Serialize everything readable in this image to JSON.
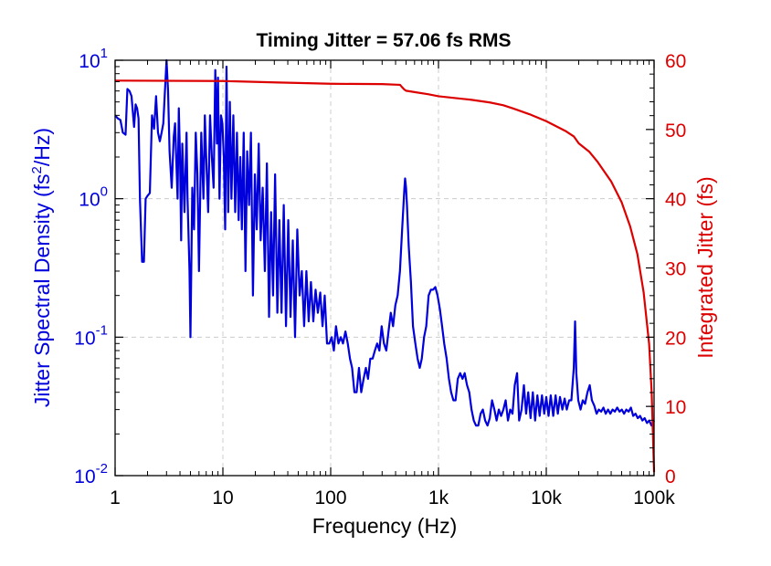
{
  "chart_data": {
    "type": "line",
    "title": "Timing Jitter = 57.06 fs RMS",
    "xlabel": "Frequency (Hz)",
    "ylabel_left": {
      "text": "Jitter Spectral Density (fs",
      "sup": "2",
      "tail": "/Hz)"
    },
    "ylabel_right": "Integrated Jitter (fs)",
    "x_scale": "log",
    "xlim": [
      1,
      100000
    ],
    "x_ticks": [
      {
        "value": 1,
        "label": "1"
      },
      {
        "value": 10,
        "label": "10"
      },
      {
        "value": 100,
        "label": "100"
      },
      {
        "value": 1000,
        "label": "1k"
      },
      {
        "value": 10000,
        "label": "10k"
      },
      {
        "value": 100000,
        "label": "100k"
      }
    ],
    "y_left_scale": "log",
    "ylim_left": [
      0.01,
      10
    ],
    "y_left_ticks": [
      {
        "value": 10,
        "base": "10",
        "exp": "1"
      },
      {
        "value": 1,
        "base": "10",
        "exp": "0"
      },
      {
        "value": 0.1,
        "base": "10",
        "exp": "-1"
      },
      {
        "value": 0.01,
        "base": "10",
        "exp": "-2"
      }
    ],
    "ylim_right": [
      0,
      60
    ],
    "y_right_ticks": [
      "0",
      "10",
      "20",
      "30",
      "40",
      "50",
      "60"
    ],
    "grid": true,
    "colors": {
      "spectral_density": "#0000dd",
      "integrated_jitter": "#dd0000",
      "grid": "#cccccc",
      "axes": "#000000"
    },
    "series": [
      {
        "axis": "left",
        "color": "#0000dd",
        "points": [
          [
            1.0,
            4.0
          ],
          [
            1.06,
            3.8
          ],
          [
            1.12,
            3.7
          ],
          [
            1.18,
            3.0
          ],
          [
            1.25,
            2.9
          ],
          [
            1.3,
            6.2
          ],
          [
            1.36,
            6.0
          ],
          [
            1.42,
            5.5
          ],
          [
            1.5,
            3.3
          ],
          [
            1.55,
            4.8
          ],
          [
            1.6,
            4.5
          ],
          [
            1.65,
            3.8
          ],
          [
            1.7,
            1.0
          ],
          [
            1.78,
            0.35
          ],
          [
            1.85,
            0.35
          ],
          [
            1.92,
            1.0
          ],
          [
            2.0,
            1.05
          ],
          [
            2.1,
            1.1
          ],
          [
            2.2,
            4.0
          ],
          [
            2.3,
            3.2
          ],
          [
            2.4,
            5.5
          ],
          [
            2.5,
            3.0
          ],
          [
            2.6,
            2.6
          ],
          [
            2.7,
            3.0
          ],
          [
            2.8,
            3.5
          ],
          [
            2.9,
            6.0
          ],
          [
            3.0,
            10.0
          ],
          [
            3.1,
            6.0
          ],
          [
            3.2,
            2.2
          ],
          [
            3.35,
            1.2
          ],
          [
            3.5,
            2.8
          ],
          [
            3.6,
            3.5
          ],
          [
            3.8,
            1.0
          ],
          [
            3.9,
            4.5
          ],
          [
            4.0,
            2.0
          ],
          [
            4.1,
            0.5
          ],
          [
            4.2,
            2.5
          ],
          [
            4.4,
            0.8
          ],
          [
            4.6,
            3.0
          ],
          [
            4.7,
            1.0
          ],
          [
            4.9,
            0.3
          ],
          [
            5.0,
            0.1
          ],
          [
            5.2,
            1.2
          ],
          [
            5.4,
            0.6
          ],
          [
            5.6,
            3.0
          ],
          [
            5.8,
            1.5
          ],
          [
            6.0,
            0.3
          ],
          [
            6.3,
            3.0
          ],
          [
            6.6,
            1.0
          ],
          [
            6.8,
            4.0
          ],
          [
            7.0,
            2.0
          ],
          [
            7.3,
            0.8
          ],
          [
            7.6,
            4.0
          ],
          [
            7.9,
            2.0
          ],
          [
            8.2,
            1.2
          ],
          [
            8.5,
            8.5
          ],
          [
            8.8,
            2.5
          ],
          [
            9.0,
            7.5
          ],
          [
            9.3,
            1.0
          ],
          [
            9.6,
            4.0
          ],
          [
            9.9,
            3.5
          ],
          [
            10.2,
            2.0
          ],
          [
            10.5,
            0.6
          ],
          [
            10.8,
            9.0
          ],
          [
            11.2,
            0.8
          ],
          [
            11.6,
            5.0
          ],
          [
            12.0,
            1.0
          ],
          [
            12.5,
            4.0
          ],
          [
            13.0,
            0.8
          ],
          [
            13.5,
            3.0
          ],
          [
            14.0,
            0.7
          ],
          [
            14.5,
            2.0
          ],
          [
            15.0,
            0.6
          ],
          [
            15.6,
            3.0
          ],
          [
            16.2,
            0.3
          ],
          [
            16.8,
            2.2
          ],
          [
            17.5,
            0.9
          ],
          [
            18.2,
            3.0
          ],
          [
            19.0,
            0.2
          ],
          [
            19.8,
            1.5
          ],
          [
            20.6,
            0.6
          ],
          [
            21.5,
            2.5
          ],
          [
            22.4,
            0.5
          ],
          [
            23.4,
            1.2
          ],
          [
            24.5,
            0.3
          ],
          [
            25.6,
            1.8
          ],
          [
            26.8,
            0.14
          ],
          [
            28.0,
            0.8
          ],
          [
            29.2,
            0.2
          ],
          [
            30.5,
            1.5
          ],
          [
            32.0,
            0.15
          ],
          [
            33.4,
            0.7
          ],
          [
            35.0,
            0.15
          ],
          [
            36.7,
            0.9
          ],
          [
            38.5,
            0.12
          ],
          [
            40.4,
            0.7
          ],
          [
            42.4,
            0.14
          ],
          [
            44.5,
            0.5
          ],
          [
            46.7,
            0.1
          ],
          [
            49.0,
            0.6
          ],
          [
            51.5,
            0.2
          ],
          [
            54.0,
            0.3
          ],
          [
            56.7,
            0.12
          ],
          [
            59.5,
            0.3
          ],
          [
            62.5,
            0.13
          ],
          [
            65.6,
            0.25
          ],
          [
            69.0,
            0.13
          ],
          [
            72.4,
            0.22
          ],
          [
            76.0,
            0.15
          ],
          [
            80.0,
            0.21
          ],
          [
            84.0,
            0.12
          ],
          [
            88.0,
            0.2
          ],
          [
            92.5,
            0.09
          ],
          [
            97.0,
            0.09
          ],
          [
            102.0,
            0.1
          ],
          [
            107.0,
            0.08
          ],
          [
            112.0,
            0.12
          ],
          [
            118.0,
            0.09
          ],
          [
            124.0,
            0.1
          ],
          [
            130.0,
            0.09
          ],
          [
            137.0,
            0.11
          ],
          [
            144.0,
            0.09
          ],
          [
            151.0,
            0.07
          ],
          [
            158.0,
            0.06
          ],
          [
            166.0,
            0.04
          ],
          [
            174.0,
            0.04
          ],
          [
            183.0,
            0.06
          ],
          [
            192.0,
            0.04
          ],
          [
            202.0,
            0.05
          ],
          [
            212.0,
            0.06
          ],
          [
            222.0,
            0.05
          ],
          [
            233.0,
            0.07
          ],
          [
            245.0,
            0.07
          ],
          [
            257.0,
            0.08
          ],
          [
            270.0,
            0.09
          ],
          [
            283.0,
            0.08
          ],
          [
            297.0,
            0.12
          ],
          [
            312.0,
            0.09
          ],
          [
            328.0,
            0.08
          ],
          [
            344.0,
            0.11
          ],
          [
            361.0,
            0.15
          ],
          [
            379.0,
            0.12
          ],
          [
            398.0,
            0.17
          ],
          [
            418.0,
            0.2
          ],
          [
            439.0,
            0.3
          ],
          [
            460.0,
            0.6
          ],
          [
            483.0,
            1.2
          ],
          [
            490.0,
            1.4
          ],
          [
            500.0,
            1.2
          ],
          [
            510.0,
            0.9
          ],
          [
            530.0,
            0.45
          ],
          [
            555.0,
            0.25
          ],
          [
            580.0,
            0.12
          ],
          [
            610.0,
            0.09
          ],
          [
            640.0,
            0.07
          ],
          [
            670.0,
            0.06
          ],
          [
            700.0,
            0.07
          ],
          [
            735.0,
            0.1
          ],
          [
            770.0,
            0.12
          ],
          [
            810.0,
            0.2
          ],
          [
            850.0,
            0.22
          ],
          [
            890.0,
            0.22
          ],
          [
            935.0,
            0.23
          ],
          [
            980.0,
            0.2
          ],
          [
            1030.0,
            0.16
          ],
          [
            1080.0,
            0.12
          ],
          [
            1130.0,
            0.09
          ],
          [
            1190.0,
            0.07
          ],
          [
            1250.0,
            0.05
          ],
          [
            1310.0,
            0.04
          ],
          [
            1375.0,
            0.035
          ],
          [
            1440.0,
            0.035
          ],
          [
            1510.0,
            0.05
          ],
          [
            1590.0,
            0.055
          ],
          [
            1670.0,
            0.05
          ],
          [
            1750.0,
            0.055
          ],
          [
            1840.0,
            0.045
          ],
          [
            1930.0,
            0.04
          ],
          [
            2025.0,
            0.03
          ],
          [
            2125.0,
            0.025
          ],
          [
            2230.0,
            0.023
          ],
          [
            2340.0,
            0.023
          ],
          [
            2460.0,
            0.028
          ],
          [
            2580.0,
            0.03
          ],
          [
            2710.0,
            0.025
          ],
          [
            2850.0,
            0.023
          ],
          [
            2990.0,
            0.026
          ],
          [
            3140.0,
            0.035
          ],
          [
            3300.0,
            0.03
          ],
          [
            3460.0,
            0.025
          ],
          [
            3630.0,
            0.03
          ],
          [
            3810.0,
            0.027
          ],
          [
            4000.0,
            0.03
          ],
          [
            4200.0,
            0.035
          ],
          [
            4410.0,
            0.025
          ],
          [
            4630.0,
            0.03
          ],
          [
            4860.0,
            0.028
          ],
          [
            5100.0,
            0.045
          ],
          [
            5360.0,
            0.055
          ],
          [
            5600.0,
            0.025
          ],
          [
            5900.0,
            0.03
          ],
          [
            6200.0,
            0.045
          ],
          [
            6500.0,
            0.028
          ],
          [
            6800.0,
            0.04
          ],
          [
            7150.0,
            0.026
          ],
          [
            7500.0,
            0.04
          ],
          [
            7880.0,
            0.025
          ],
          [
            8270.0,
            0.038
          ],
          [
            8680.0,
            0.027
          ],
          [
            9120.0,
            0.038
          ],
          [
            9570.0,
            0.028
          ],
          [
            10000.0,
            0.037
          ],
          [
            10500.0,
            0.027
          ],
          [
            11000.0,
            0.038
          ],
          [
            11600.0,
            0.027
          ],
          [
            12200.0,
            0.038
          ],
          [
            12800.0,
            0.028
          ],
          [
            13400.0,
            0.037
          ],
          [
            14100.0,
            0.03
          ],
          [
            14800.0,
            0.036
          ],
          [
            15500.0,
            0.03
          ],
          [
            16300.0,
            0.035
          ],
          [
            17100.0,
            0.035
          ],
          [
            18000.0,
            0.06
          ],
          [
            18500.0,
            0.13
          ],
          [
            19000.0,
            0.055
          ],
          [
            19800.0,
            0.035
          ],
          [
            20800.0,
            0.03
          ],
          [
            21800.0,
            0.035
          ],
          [
            22900.0,
            0.033
          ],
          [
            24100.0,
            0.04
          ],
          [
            25300.0,
            0.045
          ],
          [
            26500.0,
            0.035
          ],
          [
            27900.0,
            0.032
          ],
          [
            29300.0,
            0.028
          ],
          [
            30700.0,
            0.03
          ],
          [
            32300.0,
            0.029
          ],
          [
            33900.0,
            0.031
          ],
          [
            35600.0,
            0.028
          ],
          [
            37400.0,
            0.03
          ],
          [
            39300.0,
            0.028
          ],
          [
            41200.0,
            0.03
          ],
          [
            43300.0,
            0.029
          ],
          [
            45500.0,
            0.031
          ],
          [
            47800.0,
            0.029
          ],
          [
            50200.0,
            0.03
          ],
          [
            52700.0,
            0.028
          ],
          [
            55300.0,
            0.03
          ],
          [
            58100.0,
            0.029
          ],
          [
            61000.0,
            0.031
          ],
          [
            64000.0,
            0.027
          ],
          [
            67300.0,
            0.028
          ],
          [
            70600.0,
            0.026
          ],
          [
            74200.0,
            0.027
          ],
          [
            77900.0,
            0.025
          ],
          [
            81800.0,
            0.026
          ],
          [
            85900.0,
            0.024
          ],
          [
            90200.0,
            0.025
          ],
          [
            94700.0,
            0.023
          ],
          [
            100000.0,
            0.025
          ]
        ]
      },
      {
        "axis": "right",
        "color": "#dd0000",
        "points": [
          [
            1.0,
            57.06
          ],
          [
            10.0,
            57.0
          ],
          [
            30.0,
            56.8
          ],
          [
            100.0,
            56.6
          ],
          [
            300.0,
            56.55
          ],
          [
            440.0,
            56.45
          ],
          [
            460.0,
            56.1
          ],
          [
            480.0,
            55.8
          ],
          [
            500.0,
            55.6
          ],
          [
            600.0,
            55.4
          ],
          [
            800.0,
            55.1
          ],
          [
            1000.0,
            54.8
          ],
          [
            1500.0,
            54.5
          ],
          [
            2000.0,
            54.3
          ],
          [
            3000.0,
            53.9
          ],
          [
            4000.0,
            53.5
          ],
          [
            5000.0,
            53.0
          ],
          [
            7000.0,
            52.2
          ],
          [
            10000.0,
            51.2
          ],
          [
            15000.0,
            49.8
          ],
          [
            18000.0,
            49.0
          ],
          [
            20000.0,
            48.0
          ],
          [
            25000.0,
            46.8
          ],
          [
            30000.0,
            45.3
          ],
          [
            40000.0,
            42.5
          ],
          [
            50000.0,
            39.5
          ],
          [
            60000.0,
            36.0
          ],
          [
            70000.0,
            32.0
          ],
          [
            80000.0,
            26.5
          ],
          [
            90000.0,
            19.0
          ],
          [
            95000.0,
            12.0
          ],
          [
            100000.0,
            0.5
          ]
        ]
      }
    ]
  }
}
